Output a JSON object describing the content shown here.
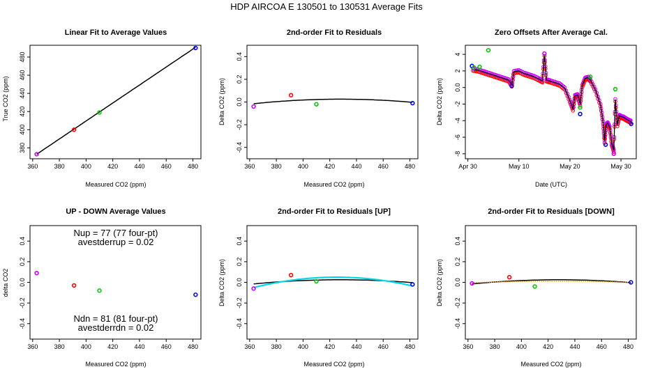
{
  "figure": {
    "title": "HDP   AIRCOA E   130501 to 130531   Average Fits"
  },
  "colors": {
    "red": "#ff0000",
    "green": "#00cc00",
    "blue": "#0000ff",
    "purple": "#cc00ff",
    "black": "#000000",
    "cyan": "#00d8e8",
    "orange": "#ffa500"
  },
  "chart_data": [
    {
      "id": "p1",
      "type": "scatter",
      "title": "Linear Fit to Average Values",
      "xlabel": "Measured CO2 (ppm)",
      "ylabel": "True CO2 (ppm)",
      "xlim": [
        358,
        486
      ],
      "ylim": [
        368,
        493
      ],
      "xticks": [
        360,
        380,
        400,
        420,
        440,
        460,
        480
      ],
      "yticks": [
        380,
        400,
        420,
        440,
        460,
        480
      ],
      "points": [
        {
          "x": 363,
          "y": 373,
          "color": "purple"
        },
        {
          "x": 391,
          "y": 400,
          "color": "red"
        },
        {
          "x": 410,
          "y": 419,
          "color": "green"
        },
        {
          "x": 482,
          "y": 490,
          "color": "blue"
        }
      ],
      "lines": [
        {
          "type": "linear",
          "slope": 0.99,
          "intercept": 13.6,
          "xrange": [
            363,
            482
          ],
          "color": "black"
        }
      ]
    },
    {
      "id": "p2",
      "type": "scatter",
      "title": "2nd-order Fit to Residuals",
      "xlabel": "Measured CO2 (ppm)",
      "ylabel": "Delta CO2 (ppm)",
      "xlim": [
        358,
        486
      ],
      "ylim": [
        -0.5,
        0.5
      ],
      "xticks": [
        360,
        380,
        400,
        420,
        440,
        460,
        480
      ],
      "yticks": [
        -0.4,
        -0.2,
        0.0,
        0.2,
        0.4
      ],
      "points": [
        {
          "x": 363,
          "y": -0.04,
          "color": "purple"
        },
        {
          "x": 391,
          "y": 0.06,
          "color": "red"
        },
        {
          "x": 410,
          "y": -0.02,
          "color": "green"
        },
        {
          "x": 482,
          "y": -0.01,
          "color": "blue"
        }
      ],
      "lines": [
        {
          "type": "quadratic",
          "vertex_x": 428,
          "peak": 0.025,
          "k": 9.5e-06,
          "xrange": [
            363,
            482
          ],
          "color": "black"
        }
      ]
    },
    {
      "id": "p3",
      "type": "line",
      "title": "Zero Offsets After Average Cal.",
      "xlabel": "Date (UTC)",
      "ylabel": "Delta CO2 (ppm)",
      "xlim": [
        0.5,
        34.0
      ],
      "ylim": [
        -8.6,
        5.1
      ],
      "xticks": [
        1,
        11,
        21,
        31
      ],
      "xticklabels": [
        "Apr 30",
        "May 10",
        "May 20",
        "May 30"
      ],
      "yticks": [
        -8,
        -6,
        -4,
        -2,
        0,
        2,
        4
      ],
      "series": [
        {
          "name": "zero offset",
          "color": "black",
          "x": [
            2,
            3,
            4,
            5,
            6,
            7,
            8,
            9,
            9.6,
            10,
            11,
            12,
            13,
            14,
            15,
            15.6,
            16,
            16.4,
            17,
            18,
            19,
            20,
            21,
            21.6,
            22,
            22.5,
            23,
            23.4,
            24,
            24.6,
            25,
            26,
            27,
            27.5,
            27.8,
            28.1,
            28.4,
            28.8,
            29.2,
            29.6,
            29.9,
            30.3,
            30.7,
            31,
            31.5,
            32,
            32.6,
            33
          ],
          "y": [
            2.2,
            2.1,
            1.9,
            1.7,
            1.5,
            1.3,
            1.1,
            0.9,
            0.3,
            1.9,
            2.0,
            1.7,
            1.5,
            1.3,
            1.0,
            0.8,
            4.0,
            0.9,
            0.8,
            0.6,
            0.4,
            -0.1,
            -1.6,
            -2.6,
            -1.0,
            -0.9,
            -2.0,
            0.2,
            1.1,
            1.2,
            0.9,
            -0.3,
            -2.1,
            -4.2,
            -6.5,
            -4.5,
            -4.3,
            -4.8,
            -6.8,
            -7.6,
            -1.5,
            -4.5,
            -3.4,
            -3.5,
            -3.6,
            -3.8,
            -4.0,
            -4.1
          ]
        }
      ],
      "points": [
        {
          "x": 1.8,
          "y": 2.6,
          "color": "blue"
        },
        {
          "x": 2.2,
          "y": 2.4,
          "color": "green"
        },
        {
          "x": 3.3,
          "y": 2.5,
          "color": "green"
        },
        {
          "x": 5.0,
          "y": 4.5,
          "color": "green"
        },
        {
          "x": 9.6,
          "y": 0.2,
          "color": "blue"
        },
        {
          "x": 16.0,
          "y": 4.1,
          "color": "purple"
        },
        {
          "x": 23.0,
          "y": -3.2,
          "color": "blue"
        },
        {
          "x": 23.0,
          "y": -2.4,
          "color": "green"
        },
        {
          "x": 25.0,
          "y": 1.3,
          "color": "green"
        },
        {
          "x": 28.0,
          "y": -6.9,
          "color": "blue"
        },
        {
          "x": 29.6,
          "y": -8.0,
          "color": "purple"
        },
        {
          "x": 29.9,
          "y": -0.2,
          "color": "green"
        },
        {
          "x": 33.0,
          "y": -4.4,
          "color": "blue"
        }
      ]
    },
    {
      "id": "p4",
      "type": "scatter",
      "title": "UP - DOWN Average Values",
      "xlabel": "Measured CO2 (ppm)",
      "ylabel": "delta CO2",
      "xlim": [
        358,
        486
      ],
      "ylim": [
        -0.55,
        0.55
      ],
      "xticks": [
        360,
        380,
        400,
        420,
        440,
        460,
        480
      ],
      "yticks": [
        -0.4,
        -0.2,
        0.0,
        0.2,
        0.4
      ],
      "points": [
        {
          "x": 363,
          "y": 0.09,
          "color": "purple"
        },
        {
          "x": 391,
          "y": -0.03,
          "color": "red"
        },
        {
          "x": 410,
          "y": -0.08,
          "color": "green"
        },
        {
          "x": 482,
          "y": -0.12,
          "color": "blue"
        }
      ],
      "annotations": {
        "nup": "Nup = 77 (77 four-pt)",
        "avestderrup": "avestderrup =  0.02",
        "ndn": "Ndn = 81 (81 four-pt)",
        "avestderrdn": "avestderrdn =  0.02"
      }
    },
    {
      "id": "p5",
      "type": "scatter",
      "title": "2nd-order Fit to Residuals [UP]",
      "xlabel": "Measured CO2 (ppm)",
      "ylabel": "Delta CO2 (ppm)",
      "xlim": [
        358,
        486
      ],
      "ylim": [
        -0.55,
        0.55
      ],
      "xticks": [
        360,
        380,
        400,
        420,
        440,
        460,
        480
      ],
      "yticks": [
        -0.4,
        -0.2,
        0.0,
        0.2,
        0.4
      ],
      "points": [
        {
          "x": 363,
          "y": -0.06,
          "color": "purple"
        },
        {
          "x": 391,
          "y": 0.07,
          "color": "red"
        },
        {
          "x": 410,
          "y": 0.01,
          "color": "green"
        },
        {
          "x": 482,
          "y": -0.02,
          "color": "blue"
        }
      ],
      "lines": [
        {
          "type": "quadratic",
          "vertex_x": 428,
          "peak": 0.025,
          "k": 9.5e-06,
          "xrange": [
            363,
            482
          ],
          "color": "black"
        },
        {
          "type": "quadratic",
          "vertex_x": 425,
          "peak": 0.05,
          "k": 2.62e-05,
          "xrange": [
            363,
            482
          ],
          "color": "cyan"
        }
      ]
    },
    {
      "id": "p6",
      "type": "scatter",
      "title": "2nd-order Fit to Residuals [DOWN]",
      "xlabel": "Measured CO2 (ppm)",
      "ylabel": "Delta CO2 (ppm)",
      "xlim": [
        358,
        486
      ],
      "ylim": [
        -0.55,
        0.55
      ],
      "xticks": [
        360,
        380,
        400,
        420,
        440,
        460,
        480
      ],
      "yticks": [
        -0.4,
        -0.2,
        0.0,
        0.2,
        0.4
      ],
      "points": [
        {
          "x": 363,
          "y": -0.01,
          "color": "purple"
        },
        {
          "x": 391,
          "y": 0.05,
          "color": "red"
        },
        {
          "x": 410,
          "y": -0.04,
          "color": "green"
        },
        {
          "x": 482,
          "y": 0.0,
          "color": "blue"
        }
      ],
      "lines": [
        {
          "type": "quadratic",
          "vertex_x": 428,
          "peak": 0.025,
          "k": 9.5e-06,
          "xrange": [
            363,
            482
          ],
          "color": "black"
        },
        {
          "type": "quadratic",
          "vertex_x": 425,
          "peak": 0.01,
          "k": 3.5e-06,
          "xrange": [
            363,
            482
          ],
          "color": "orange",
          "dotted": true
        }
      ]
    }
  ]
}
